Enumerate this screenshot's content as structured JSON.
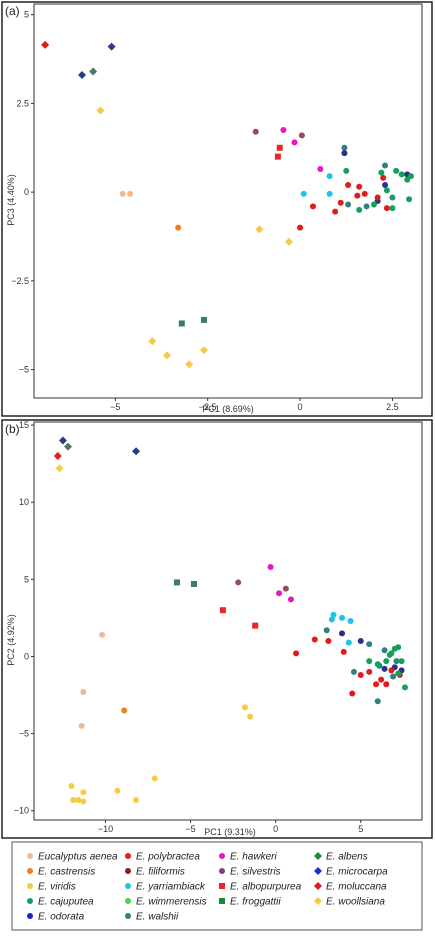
{
  "chart_data": [
    {
      "type": "scatter",
      "panel_label": "(a)",
      "xlabel": "PC1 (8.69%)",
      "ylabel": "PC3 (4.40%)",
      "xlim": [
        -7.2,
        3.3
      ],
      "ylim": [
        -5.8,
        5.3
      ],
      "xticks": [
        -5,
        -2.5,
        0,
        2.5
      ],
      "xtick_labels": [
        "−5",
        "−2.5",
        "0",
        "2.5"
      ],
      "yticks": [
        -5,
        -2.5,
        0,
        2.5,
        5
      ],
      "ytick_labels": [
        "−5",
        "−2.5",
        "0",
        "2.5",
        "5"
      ],
      "grid": false,
      "points": [
        {
          "x": -4.8,
          "y": -0.05,
          "s": "aenea"
        },
        {
          "x": -4.6,
          "y": -0.05,
          "s": "aenea"
        },
        {
          "x": -3.3,
          "y": -1.0,
          "s": "castrensis"
        },
        {
          "x": -5.4,
          "y": 2.3,
          "s": "woollsiana"
        },
        {
          "x": -1.1,
          "y": -1.05,
          "s": "woollsiana"
        },
        {
          "x": -0.3,
          "y": -1.4,
          "s": "woollsiana"
        },
        {
          "x": -4.0,
          "y": -4.2,
          "s": "woollsiana"
        },
        {
          "x": -3.6,
          "y": -4.6,
          "s": "woollsiana"
        },
        {
          "x": -2.6,
          "y": -4.45,
          "s": "woollsiana"
        },
        {
          "x": -3.0,
          "y": -4.85,
          "s": "woollsiana"
        },
        {
          "x": -6.9,
          "y": 4.15,
          "s": "moluccana"
        },
        {
          "x": -5.9,
          "y": 3.3,
          "s": "microcarpa"
        },
        {
          "x": -5.1,
          "y": 4.1,
          "s": "microcarpa"
        },
        {
          "x": -5.6,
          "y": 3.4,
          "s": "albens"
        },
        {
          "x": -3.2,
          "y": -3.7,
          "s": "froggattii"
        },
        {
          "x": -2.6,
          "y": -3.6,
          "s": "froggattii"
        },
        {
          "x": -0.55,
          "y": 1.25,
          "s": "albopurpurea"
        },
        {
          "x": -0.6,
          "y": 1.0,
          "s": "albopurpurea"
        },
        {
          "x": -1.2,
          "y": 1.7,
          "s": "silvestris"
        },
        {
          "x": 0.05,
          "y": 1.6,
          "s": "silvestris"
        },
        {
          "x": -0.45,
          "y": 1.75,
          "s": "hawkeri"
        },
        {
          "x": -0.15,
          "y": 1.4,
          "s": "hawkeri"
        },
        {
          "x": 0.55,
          "y": 0.65,
          "s": "hawkeri"
        },
        {
          "x": 0.1,
          "y": -0.05,
          "s": "yarriambiack"
        },
        {
          "x": 0.8,
          "y": 0.45,
          "s": "yarriambiack"
        },
        {
          "x": 0.8,
          "y": -0.05,
          "s": "yarriambiack"
        },
        {
          "x": 1.2,
          "y": 1.25,
          "s": "walshii"
        },
        {
          "x": 2.3,
          "y": 0.75,
          "s": "walshii"
        },
        {
          "x": 1.3,
          "y": -0.35,
          "s": "walshii"
        },
        {
          "x": 1.8,
          "y": -0.4,
          "s": "walshii"
        },
        {
          "x": 1.2,
          "y": 1.1,
          "s": "odorata"
        },
        {
          "x": 2.3,
          "y": 0.2,
          "s": "odorata"
        },
        {
          "x": 2.9,
          "y": 0.5,
          "s": "odorata"
        },
        {
          "x": 2.1,
          "y": -0.25,
          "s": "odorata"
        },
        {
          "x": 0.0,
          "y": -1.0,
          "s": "polybractea"
        },
        {
          "x": 0.35,
          "y": -0.4,
          "s": "polybractea"
        },
        {
          "x": 0.95,
          "y": -0.55,
          "s": "polybractea"
        },
        {
          "x": 1.1,
          "y": -0.3,
          "s": "polybractea"
        },
        {
          "x": 1.3,
          "y": 0.2,
          "s": "polybractea"
        },
        {
          "x": 1.6,
          "y": 0.15,
          "s": "polybractea"
        },
        {
          "x": 1.75,
          "y": -0.05,
          "s": "polybractea"
        },
        {
          "x": 2.25,
          "y": 0.4,
          "s": "polybractea"
        },
        {
          "x": 2.1,
          "y": -0.15,
          "s": "polybractea"
        },
        {
          "x": 2.35,
          "y": -0.45,
          "s": "polybractea"
        },
        {
          "x": 1.55,
          "y": -0.1,
          "s": "polybractea"
        },
        {
          "x": 1.25,
          "y": 0.6,
          "s": "cajuputea"
        },
        {
          "x": 1.6,
          "y": -0.5,
          "s": "cajuputea"
        },
        {
          "x": 2.0,
          "y": -0.35,
          "s": "cajuputea"
        },
        {
          "x": 2.35,
          "y": 0.05,
          "s": "cajuputea"
        },
        {
          "x": 2.5,
          "y": -0.15,
          "s": "cajuputea"
        },
        {
          "x": 2.6,
          "y": 0.6,
          "s": "cajuputea"
        },
        {
          "x": 2.75,
          "y": 0.5,
          "s": "cajuputea"
        },
        {
          "x": 2.9,
          "y": 0.35,
          "s": "cajuputea"
        },
        {
          "x": 2.95,
          "y": -0.2,
          "s": "cajuputea"
        },
        {
          "x": 2.5,
          "y": -0.45,
          "s": "cajuputea"
        },
        {
          "x": 3.0,
          "y": 0.45,
          "s": "cajuputea"
        },
        {
          "x": 2.2,
          "y": 0.55,
          "s": "cajuputea"
        }
      ]
    },
    {
      "type": "scatter",
      "panel_label": "(b)",
      "xlabel": "PC1 (9.31%)",
      "ylabel": "PC2 (4.92%)",
      "xlim": [
        -14.2,
        8.6
      ],
      "ylim": [
        -10.6,
        15.2
      ],
      "xticks": [
        -10,
        -5,
        0,
        5
      ],
      "xtick_labels": [
        "−10",
        "−5",
        "0",
        "5"
      ],
      "yticks": [
        -10,
        -5,
        0,
        5,
        10,
        15
      ],
      "ytick_labels": [
        "−10",
        "−5",
        "0",
        "5",
        "10",
        "15"
      ],
      "grid": false,
      "points": [
        {
          "x": -10.2,
          "y": 1.4,
          "s": "aenea"
        },
        {
          "x": -11.3,
          "y": -2.3,
          "s": "aenea"
        },
        {
          "x": -11.4,
          "y": -4.5,
          "s": "aenea"
        },
        {
          "x": -8.9,
          "y": -3.5,
          "s": "castrensis"
        },
        {
          "x": -12.7,
          "y": 12.2,
          "s": "woollsiana"
        },
        {
          "x": -12.0,
          "y": -8.4,
          "s": "viridis"
        },
        {
          "x": -11.9,
          "y": -9.3,
          "s": "viridis"
        },
        {
          "x": -11.6,
          "y": -9.3,
          "s": "viridis"
        },
        {
          "x": -11.3,
          "y": -8.8,
          "s": "viridis"
        },
        {
          "x": -11.3,
          "y": -9.4,
          "s": "viridis"
        },
        {
          "x": -9.3,
          "y": -8.7,
          "s": "viridis"
        },
        {
          "x": -8.2,
          "y": -9.3,
          "s": "viridis"
        },
        {
          "x": -7.1,
          "y": -7.9,
          "s": "viridis"
        },
        {
          "x": -1.8,
          "y": -3.3,
          "s": "viridis"
        },
        {
          "x": -1.5,
          "y": -3.9,
          "s": "viridis"
        },
        {
          "x": -12.8,
          "y": 13.0,
          "s": "moluccana"
        },
        {
          "x": -12.5,
          "y": 14.0,
          "s": "microcarpa"
        },
        {
          "x": -8.2,
          "y": 13.3,
          "s": "microcarpa"
        },
        {
          "x": -12.2,
          "y": 13.6,
          "s": "albens"
        },
        {
          "x": -5.8,
          "y": 4.8,
          "s": "froggattii"
        },
        {
          "x": -4.8,
          "y": 4.7,
          "s": "froggattii"
        },
        {
          "x": -3.1,
          "y": 3.0,
          "s": "albopurpurea"
        },
        {
          "x": -1.2,
          "y": 2.0,
          "s": "albopurpurea"
        },
        {
          "x": -2.2,
          "y": 4.8,
          "s": "silvestris"
        },
        {
          "x": 0.6,
          "y": 4.4,
          "s": "silvestris"
        },
        {
          "x": -0.3,
          "y": 5.8,
          "s": "hawkeri"
        },
        {
          "x": 0.2,
          "y": 4.1,
          "s": "hawkeri"
        },
        {
          "x": 0.9,
          "y": 3.7,
          "s": "hawkeri"
        },
        {
          "x": 3.4,
          "y": 2.7,
          "s": "yarriambiack"
        },
        {
          "x": 3.3,
          "y": 2.4,
          "s": "yarriambiack"
        },
        {
          "x": 3.9,
          "y": 2.5,
          "s": "yarriambiack"
        },
        {
          "x": 4.4,
          "y": 2.3,
          "s": "yarriambiack"
        },
        {
          "x": 4.3,
          "y": 0.9,
          "s": "yarriambiack"
        },
        {
          "x": 3.0,
          "y": 1.7,
          "s": "walshii"
        },
        {
          "x": 4.6,
          "y": -1.0,
          "s": "walshii"
        },
        {
          "x": 5.5,
          "y": 0.8,
          "s": "walshii"
        },
        {
          "x": 6.1,
          "y": -0.6,
          "s": "walshii"
        },
        {
          "x": 6.4,
          "y": 0.4,
          "s": "walshii"
        },
        {
          "x": 7.1,
          "y": -0.3,
          "s": "walshii"
        },
        {
          "x": 6.9,
          "y": -1.3,
          "s": "walshii"
        },
        {
          "x": 6.0,
          "y": -2.9,
          "s": "walshii"
        },
        {
          "x": 3.9,
          "y": 1.5,
          "s": "odorata"
        },
        {
          "x": 5.0,
          "y": 1.0,
          "s": "odorata"
        },
        {
          "x": 6.4,
          "y": -0.8,
          "s": "odorata"
        },
        {
          "x": 7.0,
          "y": -0.7,
          "s": "odorata"
        },
        {
          "x": 7.4,
          "y": -0.9,
          "s": "odorata"
        },
        {
          "x": 1.2,
          "y": 0.2,
          "s": "polybractea"
        },
        {
          "x": 2.3,
          "y": 1.1,
          "s": "polybractea"
        },
        {
          "x": 3.1,
          "y": 1.0,
          "s": "polybractea"
        },
        {
          "x": 4.0,
          "y": 0.3,
          "s": "polybractea"
        },
        {
          "x": 4.5,
          "y": -2.4,
          "s": "polybractea"
        },
        {
          "x": 5.0,
          "y": -1.2,
          "s": "polybractea"
        },
        {
          "x": 5.5,
          "y": -1.0,
          "s": "polybractea"
        },
        {
          "x": 5.9,
          "y": -1.8,
          "s": "polybractea"
        },
        {
          "x": 6.2,
          "y": -1.5,
          "s": "polybractea"
        },
        {
          "x": 6.5,
          "y": -1.8,
          "s": "polybractea"
        },
        {
          "x": 6.8,
          "y": -0.9,
          "s": "polybractea"
        },
        {
          "x": 7.3,
          "y": -1.2,
          "s": "polybractea"
        },
        {
          "x": 6.0,
          "y": -0.5,
          "s": "cajuputea"
        },
        {
          "x": 6.5,
          "y": -0.3,
          "s": "cajuputea"
        },
        {
          "x": 6.7,
          "y": 0.1,
          "s": "cajuputea"
        },
        {
          "x": 6.8,
          "y": 0.2,
          "s": "cajuputea"
        },
        {
          "x": 7.0,
          "y": 0.5,
          "s": "cajuputea"
        },
        {
          "x": 7.2,
          "y": 0.6,
          "s": "cajuputea"
        },
        {
          "x": 7.4,
          "y": -0.3,
          "s": "cajuputea"
        },
        {
          "x": 7.6,
          "y": -2.0,
          "s": "cajuputea"
        },
        {
          "x": 7.2,
          "y": -1.1,
          "s": "cajuputea"
        },
        {
          "x": 5.5,
          "y": -0.3,
          "s": "cajuputea"
        }
      ]
    }
  ],
  "legend": {
    "placement": "bottom",
    "entries": [
      {
        "key": "aenea",
        "label": "Eucalyptus aenea",
        "color": "#f2b98f",
        "shape": "circle"
      },
      {
        "key": "polybractea",
        "label": "E. polybractea",
        "color": "#e31a1c",
        "shape": "circle"
      },
      {
        "key": "hawkeri",
        "label": "E. hawkeri",
        "color": "#e816c0",
        "shape": "circle"
      },
      {
        "key": "albens",
        "label": "E. albens",
        "color": "#1e8a3c",
        "shape": "diamond"
      },
      {
        "key": "castrensis",
        "label": "E. castrensis",
        "color": "#ef7d1e",
        "shape": "circle"
      },
      {
        "key": "filiformis",
        "label": "E. filiformis",
        "color": "#8b1a1a",
        "shape": "circle"
      },
      {
        "key": "silvestris",
        "label": "E. silvestris",
        "color": "#8b3a7a",
        "shape": "circle"
      },
      {
        "key": "microcarpa",
        "label": "E. microcarpa",
        "color": "#1f2fd6",
        "shape": "diamond"
      },
      {
        "key": "viridis",
        "label": "E. viridis",
        "color": "#f7c948",
        "shape": "circle"
      },
      {
        "key": "yarriambiack",
        "label": "E. yarriambiack",
        "color": "#1ec4e6",
        "shape": "circle"
      },
      {
        "key": "albopurpurea",
        "label": "E. albopurpurea",
        "color": "#e8272a",
        "shape": "square"
      },
      {
        "key": "moluccana",
        "label": "E. moluccana",
        "color": "#e31a1c",
        "shape": "diamond"
      },
      {
        "key": "cajuputea",
        "label": "E. cajuputea",
        "color": "#14a05a",
        "shape": "circle"
      },
      {
        "key": "wimmerensis",
        "label": "E. wimmerensis",
        "color": "#44d844",
        "shape": "circle"
      },
      {
        "key": "froggattii",
        "label": "E. froggattii",
        "color": "#178a3a",
        "shape": "square"
      },
      {
        "key": "woollsiana",
        "label": "E. woollsiana",
        "color": "#f5cf3a",
        "shape": "diamond"
      },
      {
        "key": "odorata",
        "label": "E. odorata",
        "color": "#1a22c8",
        "shape": "circle"
      },
      {
        "key": "walshii",
        "label": "E. walshii",
        "color": "#2f8080",
        "shape": "circle"
      }
    ]
  },
  "marker_overrides": {
    "panel_a": {
      "microcarpa": "#2b3a8c",
      "albens": "#4a7a6a",
      "froggattii": "#3c7a6a",
      "woollsiana": "#f5c84a",
      "silvestris": "#9a4a5a",
      "odorata": "#2a2f8a"
    },
    "panel_b": {
      "microcarpa": "#2b3a8c",
      "albens": "#4a7a6a",
      "froggattii": "#3c7a6a",
      "silvestris": "#9a4a5a",
      "odorata": "#2a2f8a"
    }
  }
}
